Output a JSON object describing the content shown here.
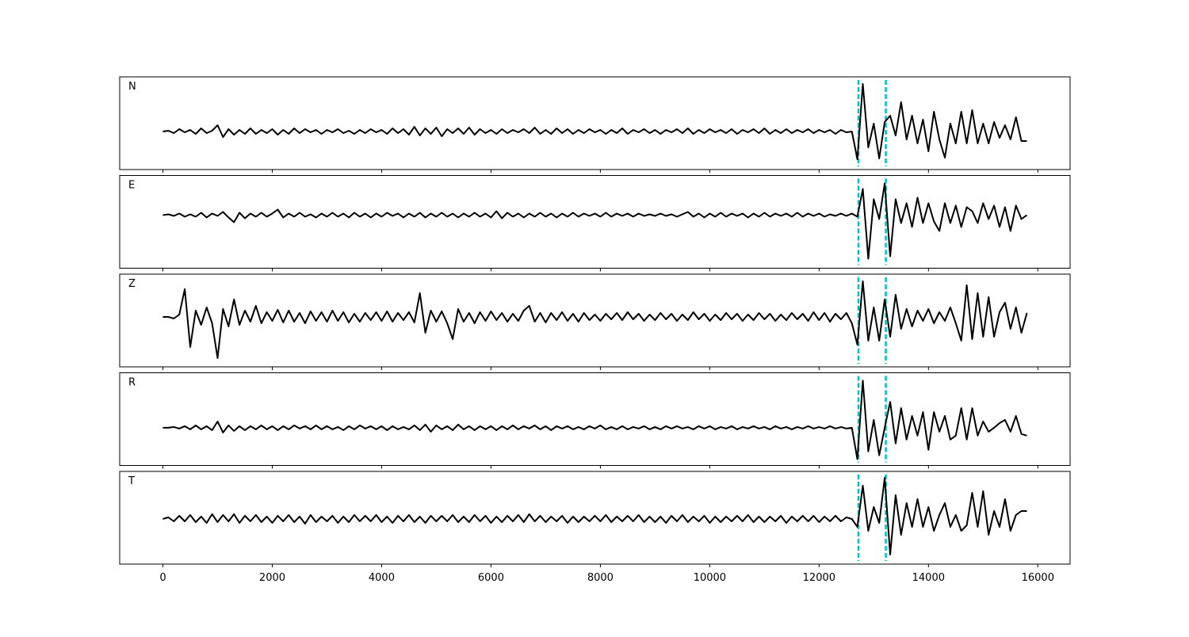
{
  "chart_data": {
    "type": "line",
    "x": [
      0,
      100,
      200,
      300,
      400,
      500,
      600,
      700,
      800,
      900,
      1000,
      1100,
      1200,
      1300,
      1400,
      1500,
      1600,
      1700,
      1800,
      1900,
      2000,
      2100,
      2200,
      2300,
      2400,
      2500,
      2600,
      2700,
      2800,
      2900,
      3000,
      3100,
      3200,
      3300,
      3400,
      3500,
      3600,
      3700,
      3800,
      3900,
      4000,
      4100,
      4200,
      4300,
      4400,
      4500,
      4600,
      4700,
      4800,
      4900,
      5000,
      5100,
      5200,
      5300,
      5400,
      5500,
      5600,
      5700,
      5800,
      5900,
      6000,
      6100,
      6200,
      6300,
      6400,
      6500,
      6600,
      6700,
      6800,
      6900,
      7000,
      7100,
      7200,
      7300,
      7400,
      7500,
      7600,
      7700,
      7800,
      7900,
      8000,
      8100,
      8200,
      8300,
      8400,
      8500,
      8600,
      8700,
      8800,
      8900,
      9000,
      9100,
      9200,
      9300,
      9400,
      9500,
      9600,
      9700,
      9800,
      9900,
      10000,
      10100,
      10200,
      10300,
      10400,
      10500,
      10600,
      10700,
      10800,
      10900,
      11000,
      11100,
      11200,
      11300,
      11400,
      11500,
      11600,
      11700,
      11800,
      11900,
      12000,
      12100,
      12200,
      12300,
      12400,
      12500,
      12600,
      12700,
      12800,
      12900,
      13000,
      13100,
      13200,
      13300,
      13400,
      13500,
      13600,
      13700,
      13800,
      13900,
      14000,
      14100,
      14200,
      14300,
      14400,
      14500,
      14600,
      14700,
      14800,
      14900,
      15000,
      15100,
      15200,
      15300,
      15400,
      15500,
      15600,
      15700,
      15800
    ],
    "xlim": [
      -790,
      16590
    ],
    "xticks": [
      0,
      2000,
      4000,
      6000,
      8000,
      10000,
      12000,
      14000,
      16000
    ],
    "vlines": [
      12720,
      13220
    ],
    "vline_color": "#00bfbf",
    "series": [
      {
        "name": "N",
        "color": "#000000",
        "ylim": [
          -48,
          69
        ],
        "values": [
          0,
          1,
          -2,
          3,
          -1,
          2,
          -3,
          4,
          -2,
          1,
          8,
          -7,
          3,
          -4,
          2,
          -3,
          4,
          -3,
          2,
          -2,
          3,
          -4,
          2,
          -3,
          4,
          -2,
          3,
          -1,
          2,
          -3,
          2,
          -1,
          3,
          -2,
          1,
          -3,
          2,
          -2,
          3,
          -1,
          2,
          -3,
          4,
          -2,
          3,
          -4,
          6,
          -5,
          4,
          -3,
          5,
          -6,
          3,
          -2,
          4,
          -3,
          5,
          -4,
          3,
          -2,
          2,
          -3,
          3,
          -2,
          2,
          -1,
          3,
          -2,
          5,
          -3,
          2,
          -3,
          4,
          -2,
          3,
          -3,
          2,
          -2,
          3,
          -1,
          2,
          -3,
          2,
          -2,
          4,
          -3,
          2,
          -1,
          3,
          -2,
          2,
          -3,
          2,
          -1,
          3,
          -2,
          4,
          -3,
          2,
          -2,
          3,
          -1,
          2,
          -2,
          3,
          -3,
          2,
          -1,
          3,
          -2,
          4,
          -3,
          2,
          -2,
          3,
          -2,
          2,
          -1,
          3,
          -2,
          2,
          -1,
          2,
          -3,
          2,
          -1,
          0,
          -35,
          60,
          -20,
          10,
          -34,
          12,
          20,
          -5,
          37,
          -10,
          20,
          -15,
          15,
          -25,
          25,
          -10,
          -33,
          10,
          -15,
          25,
          -15,
          27,
          -15,
          10,
          -15,
          12,
          -8,
          8,
          -10,
          18,
          -12,
          -12
        ]
      },
      {
        "name": "E",
        "color": "#000000",
        "ylim": [
          -67,
          50
        ],
        "values": [
          0,
          1,
          -1,
          2,
          -2,
          1,
          -2,
          3,
          -3,
          2,
          -1,
          4,
          -3,
          -9,
          3,
          -4,
          2,
          -2,
          3,
          -2,
          2,
          7,
          -3,
          2,
          -2,
          3,
          -2,
          1,
          -3,
          2,
          -2,
          3,
          -2,
          2,
          -3,
          3,
          -2,
          2,
          -3,
          2,
          -2,
          3,
          -1,
          2,
          -3,
          2,
          -2,
          3,
          -3,
          2,
          -2,
          3,
          -2,
          2,
          -3,
          2,
          -2,
          3,
          -2,
          2,
          -3,
          5,
          -4,
          3,
          -2,
          2,
          -3,
          2,
          -2,
          3,
          -2,
          2,
          -3,
          2,
          -2,
          3,
          -2,
          2,
          -1,
          2,
          -2,
          3,
          -2,
          2,
          -1,
          2,
          -2,
          2,
          -1,
          1,
          -1,
          2,
          -1,
          1,
          -2,
          1,
          4,
          -2,
          2,
          -3,
          2,
          -2,
          3,
          -2,
          2,
          -1,
          2,
          -3,
          2,
          -2,
          3,
          -2,
          2,
          -1,
          2,
          -2,
          3,
          -2,
          2,
          -1,
          2,
          -2,
          1,
          -1,
          2,
          -1,
          2,
          -2,
          33,
          -55,
          20,
          -5,
          40,
          -52,
          20,
          -10,
          15,
          -15,
          22,
          -10,
          15,
          -8,
          -20,
          15,
          -10,
          12,
          -15,
          10,
          5,
          -10,
          15,
          -5,
          12,
          -15,
          10,
          -20,
          12,
          -5,
          0
        ]
      },
      {
        "name": "Z",
        "color": "#000000",
        "ylim": [
          -63,
          54
        ],
        "values": [
          0,
          0,
          -2,
          3,
          35,
          -38,
          8,
          -10,
          12,
          -8,
          -52,
          10,
          -12,
          22,
          -10,
          8,
          -6,
          14,
          -8,
          6,
          -5,
          9,
          -7,
          8,
          -6,
          5,
          -8,
          7,
          -5,
          6,
          -6,
          8,
          -5,
          6,
          -7,
          4,
          -6,
          5,
          -4,
          6,
          -5,
          7,
          -6,
          5,
          -4,
          6,
          -7,
          30,
          -20,
          8,
          -6,
          7,
          -8,
          -28,
          10,
          -6,
          5,
          -8,
          6,
          -5,
          7,
          -4,
          5,
          -6,
          4,
          -5,
          8,
          14,
          -6,
          5,
          -7,
          5,
          -4,
          6,
          -5,
          4,
          -6,
          5,
          -4,
          3,
          -5,
          4,
          -3,
          5,
          -4,
          6,
          -3,
          4,
          -5,
          3,
          -4,
          5,
          -3,
          4,
          -5,
          3,
          -4,
          6,
          -3,
          4,
          -5,
          3,
          -4,
          5,
          -3,
          4,
          -5,
          3,
          -4,
          5,
          -3,
          4,
          -5,
          3,
          -4,
          5,
          -3,
          4,
          -5,
          6,
          -4,
          5,
          -6,
          4,
          -3,
          5,
          -8,
          -35,
          45,
          -30,
          12,
          -30,
          22,
          -25,
          28,
          -15,
          10,
          -12,
          8,
          -5,
          10,
          -8,
          6,
          -5,
          12,
          -8,
          -30,
          40,
          -28,
          30,
          -25,
          25,
          -25,
          6,
          18,
          -15,
          12,
          -20,
          5
        ]
      },
      {
        "name": "R",
        "color": "#000000",
        "ylim": [
          -48,
          70
        ],
        "values": [
          0,
          0,
          1,
          -1,
          2,
          -2,
          3,
          -2,
          2,
          -3,
          8,
          -6,
          3,
          -4,
          2,
          -3,
          2,
          -2,
          3,
          -2,
          2,
          -3,
          2,
          -2,
          3,
          -1,
          2,
          -2,
          3,
          -2,
          2,
          -2,
          1,
          -3,
          2,
          -2,
          3,
          -1,
          2,
          -2,
          2,
          -3,
          2,
          -2,
          1,
          -2,
          3,
          -3,
          4,
          -5,
          3,
          -2,
          2,
          -3,
          4,
          -2,
          2,
          -3,
          2,
          -2,
          2,
          -3,
          2,
          -2,
          3,
          -2,
          2,
          -1,
          3,
          -2,
          2,
          -3,
          2,
          -1,
          2,
          -2,
          1,
          -2,
          2,
          -1,
          3,
          -2,
          1,
          -2,
          2,
          -2,
          1,
          -1,
          2,
          -2,
          1,
          -2,
          2,
          -1,
          2,
          -1,
          1,
          -2,
          2,
          -1,
          2,
          -2,
          1,
          -1,
          2,
          -2,
          1,
          -1,
          2,
          -1,
          1,
          -2,
          2,
          -1,
          1,
          -2,
          1,
          -1,
          2,
          -1,
          1,
          -1,
          2,
          -1,
          1,
          -1,
          0,
          -40,
          60,
          -30,
          10,
          -35,
          0,
          33,
          -20,
          25,
          -15,
          15,
          -10,
          20,
          -28,
          20,
          -5,
          15,
          -15,
          -10,
          25,
          -15,
          25,
          -10,
          8,
          -5,
          0,
          6,
          10,
          -5,
          15,
          -8,
          -10
        ]
      },
      {
        "name": "T",
        "color": "#000000",
        "ylim": [
          -57,
          60
        ],
        "values": [
          0,
          2,
          -3,
          4,
          -3,
          5,
          -4,
          3,
          -5,
          6,
          -4,
          5,
          -3,
          6,
          -5,
          4,
          -3,
          5,
          -4,
          3,
          -5,
          4,
          -3,
          5,
          -4,
          3,
          -6,
          5,
          -4,
          3,
          -3,
          4,
          -5,
          3,
          -4,
          5,
          -3,
          4,
          -3,
          5,
          -4,
          3,
          -5,
          4,
          -3,
          5,
          -4,
          3,
          -5,
          4,
          -3,
          4,
          -3,
          5,
          -4,
          3,
          -4,
          5,
          -3,
          4,
          -5,
          3,
          -4,
          4,
          -3,
          5,
          -4,
          6,
          -3,
          4,
          -4,
          3,
          -3,
          4,
          -5,
          3,
          -4,
          3,
          -3,
          4,
          -3,
          5,
          -4,
          3,
          -3,
          4,
          -3,
          5,
          -4,
          3,
          -4,
          3,
          -5,
          4,
          -3,
          5,
          -4,
          3,
          -3,
          4,
          -5,
          3,
          -4,
          3,
          -3,
          4,
          -3,
          5,
          -4,
          3,
          -4,
          3,
          -3,
          4,
          -5,
          3,
          -3,
          4,
          -3,
          4,
          -4,
          3,
          -3,
          4,
          -3,
          2,
          0,
          -10,
          42,
          -15,
          15,
          -5,
          52,
          -45,
          30,
          -20,
          20,
          -10,
          25,
          -10,
          15,
          -15,
          5,
          20,
          -10,
          5,
          -15,
          -8,
          33,
          -10,
          35,
          -20,
          10,
          -10,
          25,
          -15,
          5,
          10,
          10
        ]
      }
    ]
  }
}
